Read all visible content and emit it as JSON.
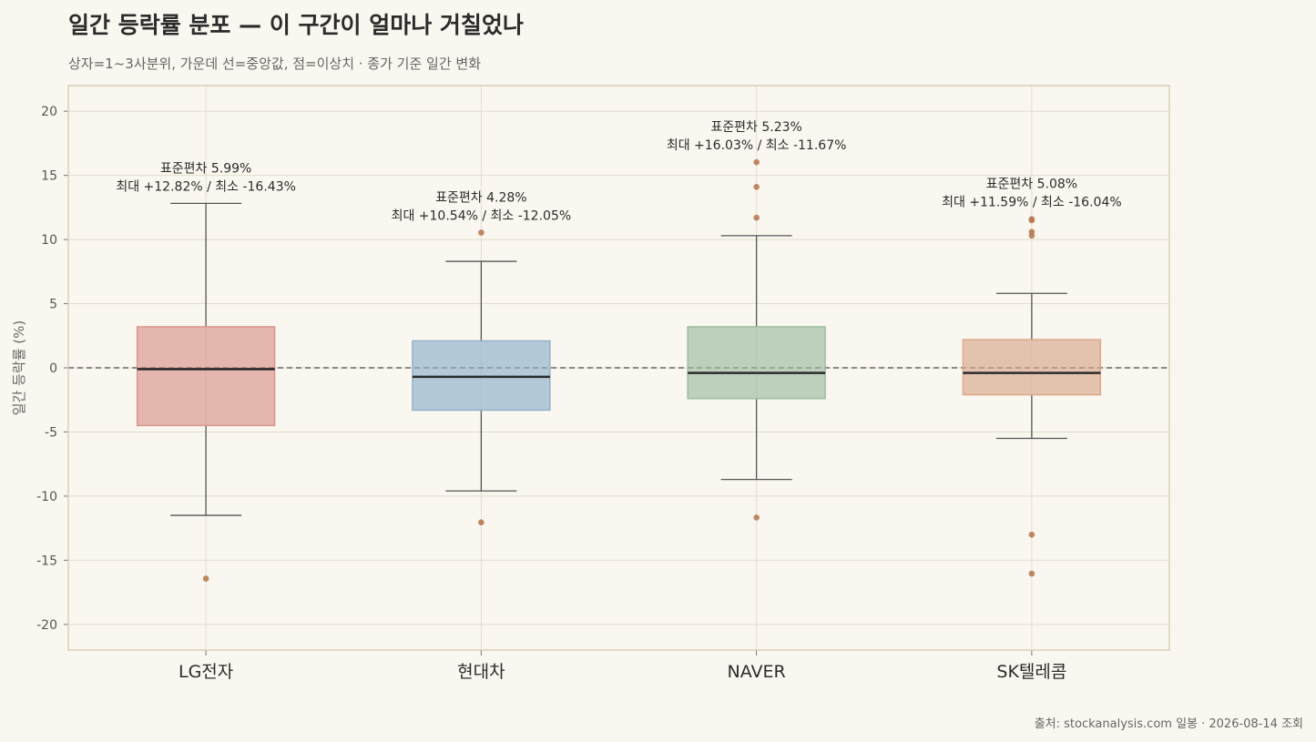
{
  "title": "일간 등락률 분포 — 이 구간이 얼마나 거칠었나",
  "subtitle": "상자=1~3사분위, 가운데 선=중앙값, 점=이상치 · 종가 기준 일간 변화",
  "source": "출처: stockanalysis.com 일봉 · 2026-08-14 조회",
  "chart_data": {
    "type": "box",
    "ylabel": "일간 등락률 (%)",
    "xlabel": "",
    "ylim": [
      -22,
      22
    ],
    "yticks": [
      20,
      15,
      10,
      5,
      0,
      -5,
      -10,
      -15,
      -20
    ],
    "grid": true,
    "reference_line": {
      "y": 0,
      "style": "dashed"
    },
    "categories": [
      "LG전자",
      "현대차",
      "NAVER",
      "SK텔레콤"
    ],
    "series": [
      {
        "category": "LG전자",
        "color": "#d9948a",
        "q1": -4.5,
        "median": -0.1,
        "q3": 3.2,
        "whisker_low": -11.5,
        "whisker_high": 12.82,
        "outliers": [
          -16.43
        ],
        "annotation_line1": "표준편차 5.99%",
        "annotation_line2": "최대 +12.82% / 최소 -16.43%"
      },
      {
        "category": "현대차",
        "color": "#8fb0c9",
        "q1": -3.3,
        "median": -0.7,
        "q3": 2.1,
        "whisker_low": -9.6,
        "whisker_high": 8.3,
        "outliers": [
          10.54,
          -12.05
        ],
        "annotation_line1": "표준편차 4.28%",
        "annotation_line2": "최대 +10.54% / 최소 -12.05%"
      },
      {
        "category": "NAVER",
        "color": "#9bbc9f",
        "q1": -2.4,
        "median": -0.4,
        "q3": 3.2,
        "whisker_low": -8.7,
        "whisker_high": 10.3,
        "outliers": [
          16.03,
          14.1,
          11.7,
          -11.67
        ],
        "annotation_line1": "표준편차 5.23%",
        "annotation_line2": "최대 +16.03% / 최소 -11.67%"
      },
      {
        "category": "SK텔레콤",
        "color": "#d9a88a",
        "q1": -2.1,
        "median": -0.4,
        "q3": 2.2,
        "whisker_low": -5.5,
        "whisker_high": 5.8,
        "outliers": [
          11.59,
          11.5,
          10.6,
          10.3,
          -13.0,
          -16.04
        ],
        "annotation_line1": "표준편차 5.08%",
        "annotation_line2": "최대 +11.59% / 최소 -16.04%"
      }
    ],
    "outlier_color": "#b87a54"
  }
}
